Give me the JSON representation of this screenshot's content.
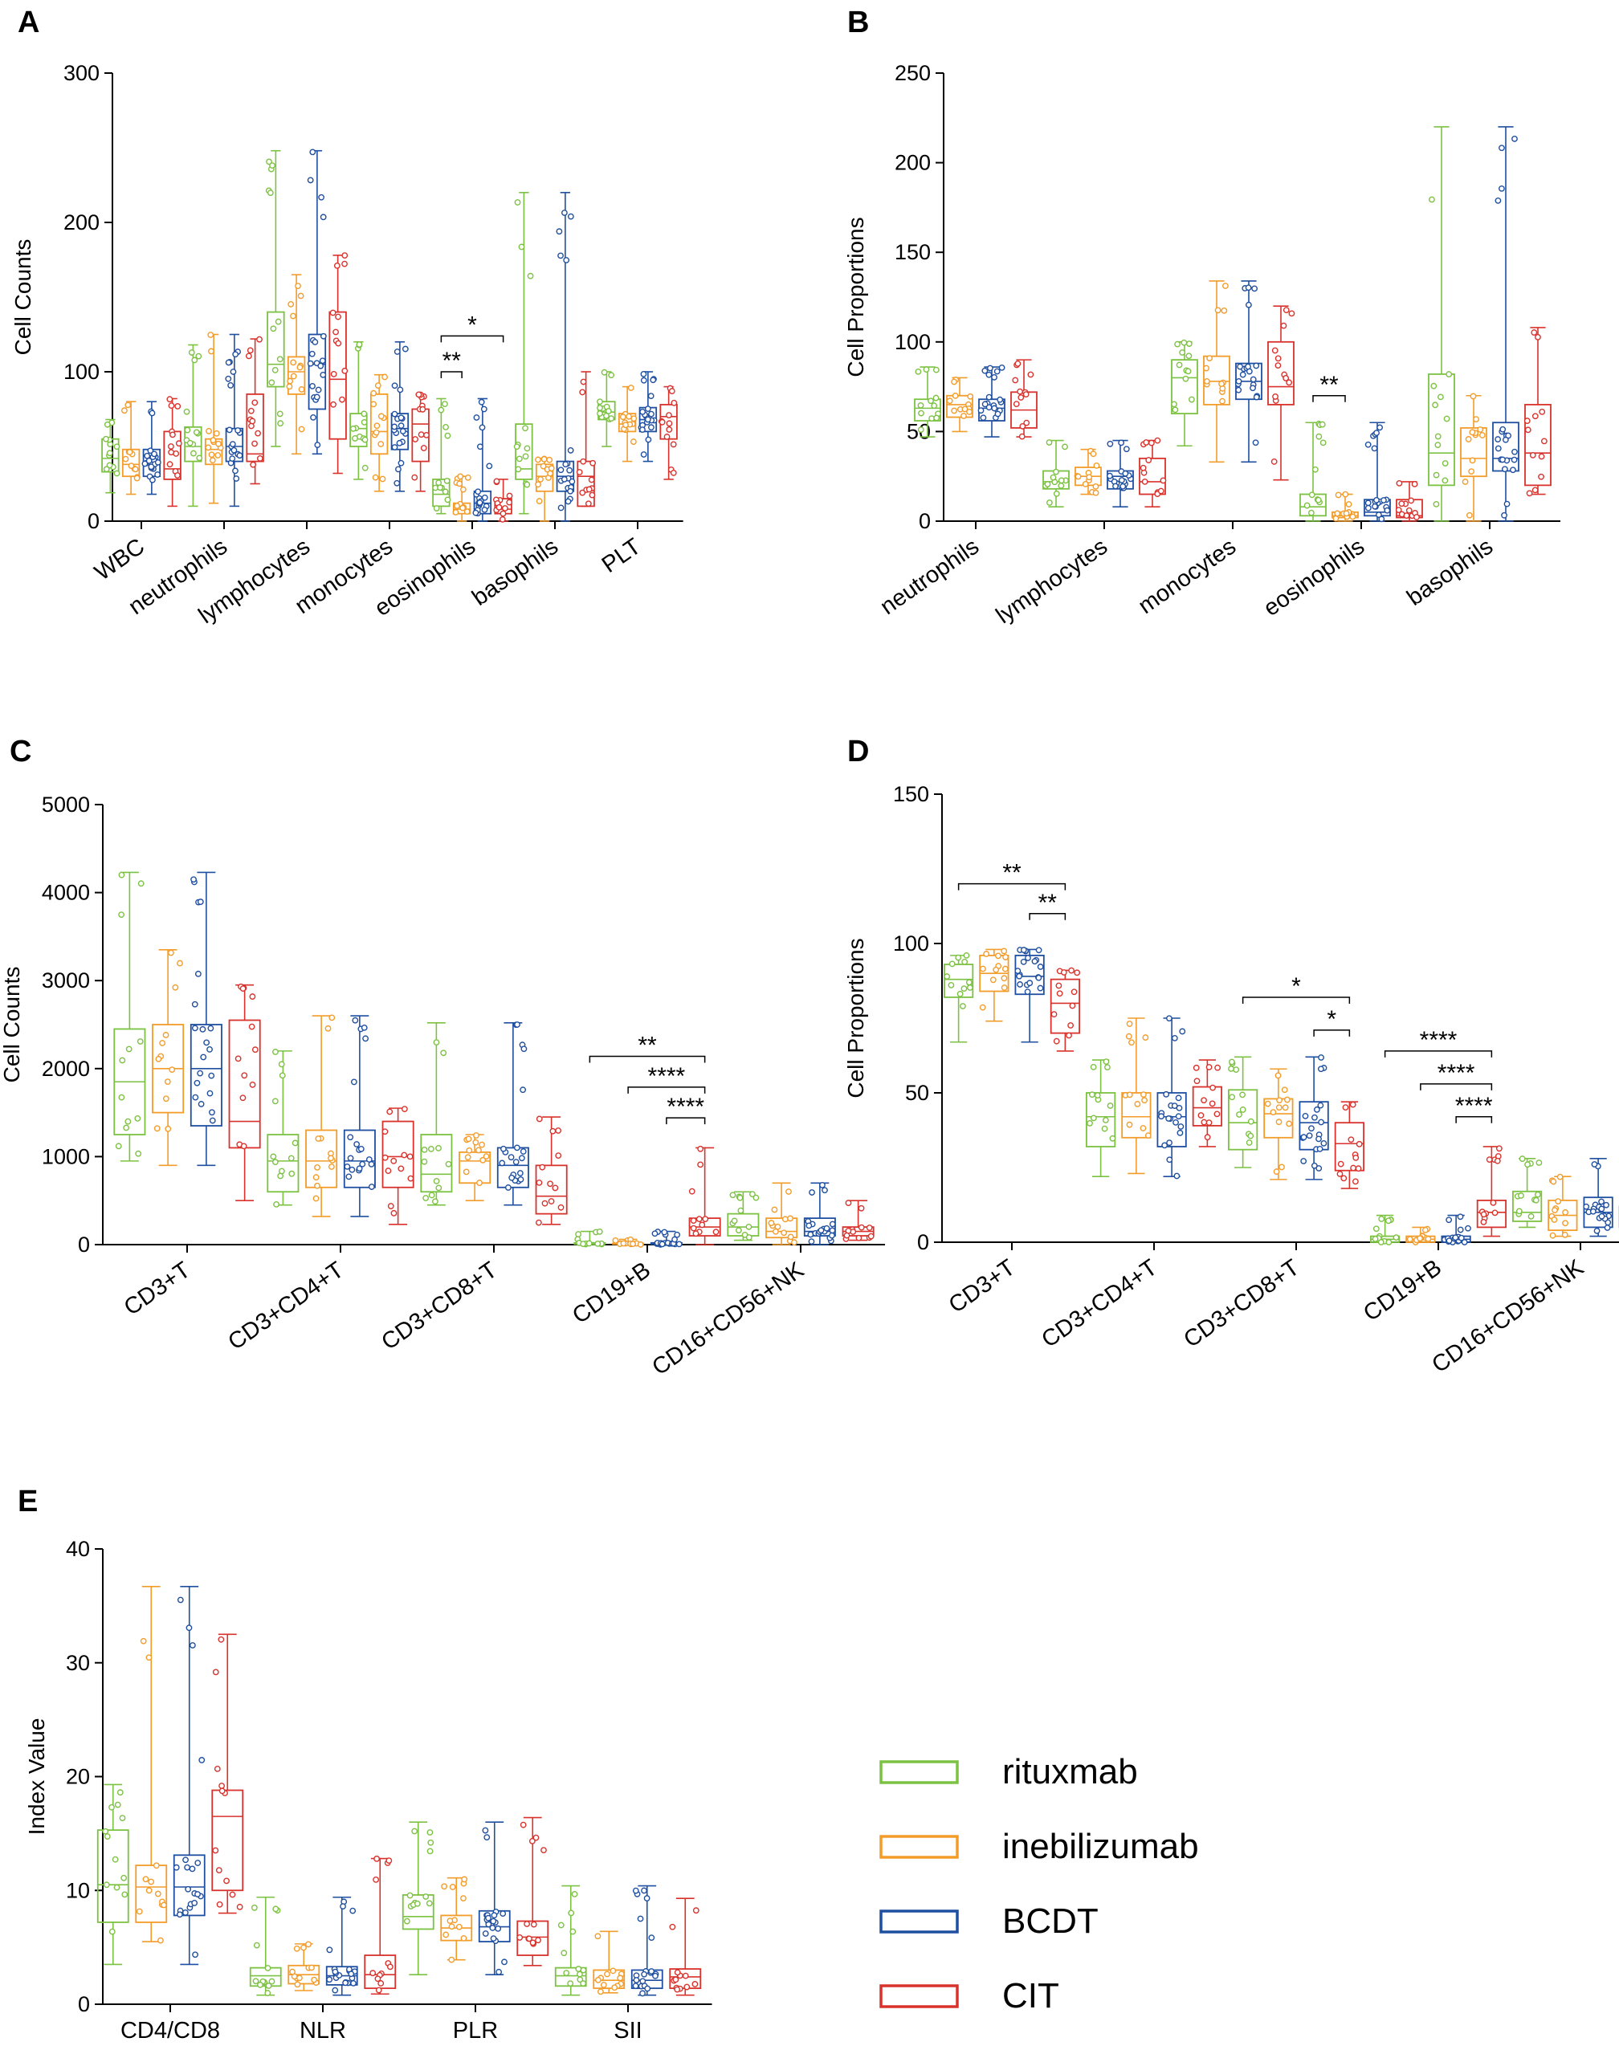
{
  "groups": [
    {
      "name": "rituxmab",
      "color": "#7cc242"
    },
    {
      "name": "inebilizumab",
      "color": "#f39c2a"
    },
    {
      "name": "BCDT",
      "color": "#1f4fa0"
    },
    {
      "name": "CIT",
      "color": "#d9322c"
    }
  ],
  "legend": [
    "rituxmab",
    "inebilizumab",
    "BCDT",
    "CIT"
  ],
  "chart_data": [
    {
      "panel": "A",
      "type": "box",
      "title": "",
      "xlabel": "",
      "ylabel": "Cell Counts",
      "ylim": [
        0,
        300
      ],
      "yticks": [
        0,
        100,
        200,
        300
      ],
      "categories": [
        "WBC",
        "neutrophils",
        "lymphocytes",
        "monocytes",
        "eosinophils",
        "basophils",
        "PLT"
      ],
      "series": [
        {
          "name": "rituxmab",
          "boxes": [
            [
              19,
              33,
              42,
              55,
              68
            ],
            [
              10,
              40,
              50,
              63,
              118
            ],
            [
              50,
              90,
              105,
              140,
              248
            ],
            [
              28,
              50,
              62,
              72,
              120
            ],
            [
              5,
              10,
              18,
              28,
              82
            ],
            [
              5,
              28,
              35,
              65,
              220
            ],
            [
              50,
              68,
              73,
              80,
              100
            ]
          ]
        },
        {
          "name": "inebilizumab",
          "boxes": [
            [
              18,
              30,
              38,
              48,
              80
            ],
            [
              12,
              38,
              48,
              55,
              125
            ],
            [
              45,
              85,
              100,
              110,
              165
            ],
            [
              20,
              45,
              60,
              85,
              98
            ],
            [
              0,
              5,
              8,
              12,
              30
            ],
            [
              0,
              20,
              30,
              38,
              42
            ],
            [
              40,
              60,
              65,
              72,
              90
            ]
          ]
        },
        {
          "name": "BCDT",
          "boxes": [
            [
              18,
              30,
              40,
              48,
              80
            ],
            [
              10,
              40,
              50,
              62,
              125
            ],
            [
              45,
              75,
              105,
              125,
              248
            ],
            [
              20,
              48,
              62,
              72,
              120
            ],
            [
              0,
              5,
              12,
              20,
              82
            ],
            [
              0,
              20,
              30,
              40,
              220
            ],
            [
              40,
              60,
              68,
              76,
              100
            ]
          ]
        },
        {
          "name": "CIT",
          "boxes": [
            [
              10,
              28,
              35,
              60,
              82
            ],
            [
              25,
              40,
              45,
              85,
              122
            ],
            [
              32,
              55,
              95,
              140,
              178
            ],
            [
              20,
              40,
              65,
              75,
              85
            ],
            [
              0,
              5,
              8,
              15,
              28
            ],
            [
              10,
              10,
              30,
              40,
              100
            ],
            [
              28,
              55,
              70,
              78,
              90
            ]
          ]
        }
      ],
      "significance": [
        {
          "label": "**",
          "category": "eosinophils",
          "from": "rituxmab",
          "to": "inebilizumab",
          "y": 100
        },
        {
          "label": "*",
          "category": "eosinophils",
          "from": "rituxmab",
          "to": "CIT",
          "y": 124
        }
      ]
    },
    {
      "panel": "B",
      "type": "box",
      "title": "",
      "xlabel": "",
      "ylabel": "Cell Proportions",
      "ylim": [
        0,
        250
      ],
      "yticks": [
        0,
        50,
        100,
        150,
        200,
        250
      ],
      "categories": [
        "neutrophils",
        "lymphocytes",
        "monocytes",
        "eosinophils",
        "basophils"
      ],
      "series": [
        {
          "name": "rituxmab",
          "boxes": [
            [
              47,
              56,
              63,
              68,
              86
            ],
            [
              8,
              18,
              22,
              28,
              45
            ],
            [
              42,
              60,
              80,
              90,
              100
            ],
            [
              0,
              3,
              8,
              15,
              55
            ],
            [
              0,
              20,
              38,
              82,
              220
            ]
          ]
        },
        {
          "name": "inebilizumab",
          "boxes": [
            [
              50,
              58,
              65,
              70,
              80
            ],
            [
              15,
              20,
              25,
              30,
              40
            ],
            [
              33,
              65,
              78,
              92,
              134
            ],
            [
              0,
              2,
              3,
              5,
              15
            ],
            [
              0,
              25,
              35,
              52,
              70
            ]
          ]
        },
        {
          "name": "BCDT",
          "boxes": [
            [
              47,
              56,
              63,
              68,
              86
            ],
            [
              8,
              18,
              25,
              28,
              45
            ],
            [
              33,
              68,
              78,
              88,
              134
            ],
            [
              0,
              3,
              5,
              12,
              55
            ],
            [
              0,
              28,
              35,
              55,
              220
            ]
          ]
        },
        {
          "name": "CIT",
          "boxes": [
            [
              47,
              52,
              62,
              72,
              90
            ],
            [
              8,
              15,
              22,
              35,
              45
            ],
            [
              23,
              65,
              75,
              100,
              120
            ],
            [
              0,
              2,
              3,
              12,
              22
            ],
            [
              15,
              20,
              38,
              65,
              108
            ]
          ]
        }
      ],
      "significance": [
        {
          "label": "**",
          "category": "eosinophils",
          "from": "rituxmab",
          "to": "inebilizumab",
          "y": 70
        }
      ]
    },
    {
      "panel": "C",
      "type": "box",
      "title": "",
      "xlabel": "",
      "ylabel": "Cell Counts",
      "ylim": [
        0,
        5000
      ],
      "yticks": [
        0,
        1000,
        2000,
        3000,
        4000,
        5000
      ],
      "categories": [
        "CD3+T",
        "CD3+CD4+T",
        "CD3+CD8+T",
        "CD19+B",
        "CD16+CD56+NK"
      ],
      "series": [
        {
          "name": "rituxmab",
          "boxes": [
            [
              950,
              1250,
              1850,
              2450,
              4230
            ],
            [
              450,
              600,
              950,
              1250,
              2200
            ],
            [
              450,
              600,
              800,
              1250,
              2520
            ],
            [
              0,
              5,
              10,
              20,
              150
            ],
            [
              50,
              100,
              200,
              350,
              600
            ]
          ]
        },
        {
          "name": "inebilizumab",
          "boxes": [
            [
              900,
              1500,
              2000,
              2500,
              3350
            ],
            [
              320,
              650,
              950,
              1300,
              2600
            ],
            [
              500,
              700,
              950,
              1050,
              1250
            ],
            [
              0,
              5,
              10,
              15,
              60
            ],
            [
              0,
              80,
              150,
              300,
              700
            ]
          ]
        },
        {
          "name": "BCDT",
          "boxes": [
            [
              900,
              1350,
              2000,
              2500,
              4230
            ],
            [
              320,
              650,
              950,
              1300,
              2600
            ],
            [
              450,
              650,
              900,
              1100,
              2520
            ],
            [
              0,
              5,
              10,
              20,
              150
            ],
            [
              0,
              100,
              150,
              300,
              700
            ]
          ]
        },
        {
          "name": "CIT",
          "boxes": [
            [
              500,
              1100,
              1400,
              2550,
              2950
            ],
            [
              230,
              650,
              1000,
              1400,
              1550
            ],
            [
              230,
              350,
              550,
              900,
              1450
            ],
            [
              0,
              100,
              200,
              300,
              1100
            ],
            [
              50,
              100,
              150,
              200,
              500
            ]
          ]
        }
      ],
      "significance": [
        {
          "label": "**",
          "category": "CD19+B",
          "from": "rituxmab",
          "to": "CIT",
          "y": 2140
        },
        {
          "label": "****",
          "category": "CD19+B",
          "from": "inebilizumab",
          "to": "CIT",
          "y": 1790
        },
        {
          "label": "****",
          "category": "CD19+B",
          "from": "BCDT",
          "to": "CIT",
          "y": 1440
        }
      ]
    },
    {
      "panel": "D",
      "type": "box",
      "title": "",
      "xlabel": "",
      "ylabel": "Cell Proportions",
      "ylim": [
        0,
        150
      ],
      "yticks": [
        0,
        50,
        100,
        150
      ],
      "categories": [
        "CD3+T",
        "CD3+CD4+T",
        "CD3+CD8+T",
        "CD19+B",
        "CD16+CD56+NK"
      ],
      "series": [
        {
          "name": "rituxmab",
          "boxes": [
            [
              67,
              82,
              88,
              93,
              96
            ],
            [
              22,
              32,
              42,
              50,
              61
            ],
            [
              25,
              31,
              40,
              51,
              62
            ],
            [
              0,
              0,
              1,
              2,
              9
            ],
            [
              5,
              7,
              10,
              17,
              28
            ]
          ]
        },
        {
          "name": "inebilizumab",
          "boxes": [
            [
              74,
              84,
              90,
              96,
              98
            ],
            [
              23,
              35,
              42,
              50,
              75
            ],
            [
              21,
              35,
              43,
              48,
              58
            ],
            [
              0,
              0,
              1,
              2,
              5
            ],
            [
              2,
              4,
              9,
              14,
              22
            ]
          ]
        },
        {
          "name": "BCDT",
          "boxes": [
            [
              67,
              83,
              89,
              96,
              98
            ],
            [
              22,
              32,
              42,
              50,
              75
            ],
            [
              21,
              31,
              40,
              47,
              62
            ],
            [
              0,
              0,
              1,
              2,
              9
            ],
            [
              2,
              5,
              10,
              15,
              28
            ]
          ]
        },
        {
          "name": "CIT",
          "boxes": [
            [
              64,
              70,
              80,
              88,
              91
            ],
            [
              32,
              39,
              45,
              52,
              61
            ],
            [
              18,
              24,
              33,
              40,
              47
            ],
            [
              2,
              5,
              10,
              14,
              32
            ],
            [
              2,
              5,
              8,
              12,
              27
            ]
          ]
        }
      ],
      "significance": [
        {
          "label": "**",
          "category": "CD3+T",
          "from": "rituxmab",
          "to": "CIT",
          "y": 120
        },
        {
          "label": "**",
          "category": "CD3+T",
          "from": "BCDT",
          "to": "CIT",
          "y": 110
        },
        {
          "label": "*",
          "category": "CD3+CD8+T",
          "from": "rituxmab",
          "to": "CIT",
          "y": 82
        },
        {
          "label": "*",
          "category": "CD3+CD8+T",
          "from": "BCDT",
          "to": "CIT",
          "y": 71
        },
        {
          "label": "****",
          "category": "CD19+B",
          "from": "rituxmab",
          "to": "CIT",
          "y": 64
        },
        {
          "label": "****",
          "category": "CD19+B",
          "from": "inebilizumab",
          "to": "CIT",
          "y": 53
        },
        {
          "label": "****",
          "category": "CD19+B",
          "from": "BCDT",
          "to": "CIT",
          "y": 42
        }
      ]
    },
    {
      "panel": "E",
      "type": "box",
      "title": "",
      "xlabel": "",
      "ylabel": "Index Value",
      "ylim": [
        0,
        40
      ],
      "yticks": [
        0,
        10,
        20,
        30,
        40
      ],
      "categories": [
        "CD4/CD8",
        "NLR",
        "PLR",
        "SII"
      ],
      "series": [
        {
          "name": "rituxmab",
          "boxes": [
            [
              3.5,
              7.2,
              10.5,
              15.3,
              19.3
            ],
            [
              0.8,
              1.6,
              2.5,
              3.2,
              9.4
            ],
            [
              2.6,
              6.6,
              7.7,
              9.6,
              16.0
            ],
            [
              0.8,
              1.6,
              2.5,
              3.2,
              10.4
            ]
          ]
        },
        {
          "name": "inebilizumab",
          "boxes": [
            [
              5.5,
              7.2,
              10.3,
              12.2,
              36.7
            ],
            [
              1.2,
              1.8,
              2.6,
              3.4,
              5.3
            ],
            [
              3.9,
              5.6,
              6.7,
              7.8,
              11.1
            ],
            [
              1.0,
              1.4,
              2.1,
              3.0,
              6.4
            ]
          ]
        },
        {
          "name": "BCDT",
          "boxes": [
            [
              3.5,
              7.8,
              10.3,
              13.1,
              36.7
            ],
            [
              0.8,
              1.7,
              2.5,
              3.3,
              9.4
            ],
            [
              2.6,
              5.5,
              6.8,
              8.2,
              16.0
            ],
            [
              0.8,
              1.4,
              2.1,
              3.0,
              10.4
            ]
          ]
        },
        {
          "name": "CIT",
          "boxes": [
            [
              8.0,
              10.0,
              16.5,
              18.8,
              32.5
            ],
            [
              0.9,
              1.4,
              2.6,
              4.3,
              12.8
            ],
            [
              3.4,
              4.3,
              5.9,
              7.3,
              16.4
            ],
            [
              0.8,
              1.4,
              2.4,
              3.1,
              9.3
            ]
          ]
        }
      ],
      "significance": []
    }
  ]
}
